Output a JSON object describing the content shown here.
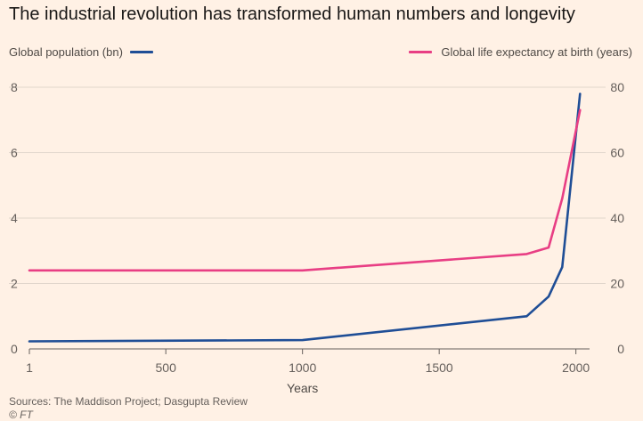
{
  "chart_data": {
    "type": "line",
    "title": "The industrial revolution has transformed human numbers and longevity",
    "xlabel": "Years",
    "xlim": [
      1,
      2050
    ],
    "x_ticks": [
      "1",
      "500",
      "1000",
      "1500",
      "2000"
    ],
    "y_left": {
      "label": "Global population (bn)",
      "ylim": [
        0,
        8
      ],
      "ticks": [
        "0",
        "2",
        "4",
        "6",
        "8"
      ]
    },
    "y_right": {
      "label": "Global life expectancy at birth (years)",
      "ylim": [
        0,
        80
      ],
      "ticks": [
        "0",
        "20",
        "40",
        "60",
        "80"
      ]
    },
    "grid": true,
    "series": [
      {
        "name": "Global population (bn)",
        "axis": "left",
        "color": "#1F4E96",
        "points": [
          [
            1,
            0.23
          ],
          [
            1000,
            0.27
          ],
          [
            1820,
            1.0
          ],
          [
            1900,
            1.6
          ],
          [
            1950,
            2.5
          ],
          [
            2015,
            7.8
          ]
        ]
      },
      {
        "name": "Global life expectancy at birth (years)",
        "axis": "right",
        "color": "#E83E84",
        "points": [
          [
            1,
            24
          ],
          [
            1000,
            24
          ],
          [
            1820,
            29
          ],
          [
            1900,
            31
          ],
          [
            1950,
            46
          ],
          [
            2015,
            73
          ]
        ]
      }
    ]
  },
  "source": "Sources: The Maddison Project; Dasgupta Review",
  "credit": "© FT"
}
